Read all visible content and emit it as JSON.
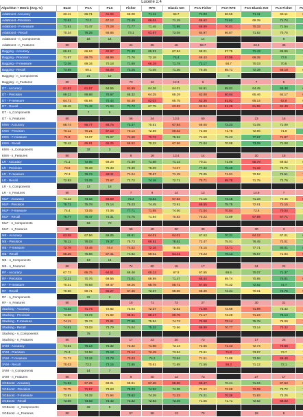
{
  "caption": "Lucene 2.4",
  "columns": [
    "Algorithm + Metric (Avg. %)",
    "Base",
    "PCA",
    "PLS",
    "Fisher",
    "RFE",
    "Elastic Net",
    "PCA-Fisher",
    "PCA-RFE",
    "PCA-Elastic Net",
    "PLS-Fisher",
    "PLS-RFE"
  ],
  "rows": [
    {
      "label": "AdaBoost- Accuracy",
      "values": [
        "66.11",
        "66.71",
        "61.06",
        "66.08",
        "71.11",
        "66.7",
        "71.03",
        "66.55",
        "71.11",
        "66.11",
        "65.47"
      ]
    },
    {
      "label": "AdaBoost -Precision",
      "values": [
        "72.61",
        "72.2",
        "67.12",
        "72.49",
        "66.04",
        "71.15",
        "66.62",
        "72.62",
        "69.39",
        "71.74",
        "72.58"
      ]
    },
    {
      "label": "AdaBoost - F-measure",
      "values": [
        "71.61",
        "71.47",
        "70.28",
        "71.77",
        "71.46",
        "71.95",
        "69.89",
        "70.01",
        "70.33",
        "71.54",
        "71.95"
      ]
    },
    {
      "label": "AdaBoost - Recall",
      "values": [
        "70.34",
        "76.25",
        "66.65",
        "73.1",
        "61.67",
        "73.08",
        "64.97",
        "66.87",
        "71.82",
        "70.75",
        "71.49"
      ]
    },
    {
      "label": "AdaBoost - n_Components",
      "values": [
        "",
        "16",
        "14",
        "",
        "",
        "",
        "14",
        "",
        "",
        "8",
        ""
      ]
    },
    {
      "label": "AdaBoost - n_Features",
      "values": [
        "80",
        "",
        "",
        "24",
        "35",
        "15",
        "58.7",
        "",
        "23.3",
        "36",
        "4"
      ]
    },
    {
      "label": "Bagging - Accuracy",
      "values": [
        "69.61",
        "66.84",
        "62.97",
        "71.39",
        "69.91",
        "67.84",
        "68.01",
        "67.75",
        "71.43",
        "69.65",
        "70.52"
      ]
    },
    {
      "label": "Bagging - Precision",
      "values": [
        "71.87",
        "69.79",
        "68.99",
        "72.76",
        "72.18",
        "74.4",
        "69.43",
        "67.95",
        "69.35",
        "73.5",
        "71.99"
      ]
    },
    {
      "label": "Bagging - F-measure",
      "values": [
        "72.09",
        "69.34",
        "70.18",
        "71.69",
        "66.29",
        "71.79",
        "72.17",
        "68.7",
        "70.03",
        "70.5",
        "71.03"
      ]
    },
    {
      "label": "Bagging - Recall",
      "values": [
        "73.59",
        "69.1",
        "65.09",
        "73.25",
        "71.06",
        "71.36",
        "70.45",
        "68.71",
        "72.39",
        "66.18",
        "69.67"
      ]
    },
    {
      "label": "Bagging - n_Components",
      "values": [
        "",
        "21",
        "12",
        "",
        "",
        "",
        "",
        "9",
        "",
        "",
        "10"
      ]
    },
    {
      "label": "Bagging - n_Features",
      "values": [
        "80",
        "",
        "",
        "73",
        "42",
        "12.3",
        "9",
        "",
        "7",
        "5",
        "14"
      ]
    },
    {
      "label": "DT - Accuracy",
      "values": [
        "61.62",
        "61.57",
        "64.55",
        "61.99",
        "64.26",
        "64.01",
        "64.61",
        "65.01",
        "64.45",
        "65.48",
        "64.89"
      ]
    },
    {
      "label": "DT - Precision",
      "values": [
        "69.22",
        "68.88",
        "70.67",
        "68.32",
        "64.25",
        "65.29",
        "62.08",
        "60.04",
        "65.46",
        "64.17",
        "62.74"
      ]
    },
    {
      "label": "DT - F-measure",
      "values": [
        "64.71",
        "65.94",
        "70.44",
        "64.48",
        "62.03",
        "65.75",
        "62.35",
        "61.92",
        "65.14",
        "62.9",
        "65.71"
      ]
    },
    {
      "label": "DT - Recall",
      "values": [
        "68.48",
        "71.42",
        "71.04",
        "71.72",
        "67.75",
        "63.53",
        "63.04",
        "61.26",
        "61.55",
        "61.49",
        "61.37"
      ]
    },
    {
      "label": "DT - n_Components",
      "values": [
        "",
        "7",
        "5",
        "",
        "",
        "",
        "",
        "",
        "",
        "",
        ""
      ]
    },
    {
      "label": "DT - n_Features",
      "values": [
        "80",
        "",
        "",
        "56",
        "44",
        "13.5",
        "50",
        "",
        "23",
        "16",
        "8"
      ]
    },
    {
      "label": "KNN - Accuracy",
      "values": [
        "68.74",
        "66.77",
        "66.75",
        "73.47",
        "70.51",
        "67.84",
        "69.05",
        "73.23",
        "71.05",
        "71.09",
        "70.78"
      ]
    },
    {
      "label": "KNN - Precision",
      "values": [
        "70.11",
        "70.21",
        "67.14",
        "70.14",
        "72.59",
        "69.02",
        "72.08",
        "71.78",
        "72.96",
        "71.9",
        "77.61"
      ]
    },
    {
      "label": "KNN - F-measure",
      "values": [
        "71.9",
        "74.07",
        "76.07",
        "71.58",
        "70.72",
        "75.92",
        "74.58",
        "75.23",
        "77.67",
        "71.87",
        "72.04"
      ]
    },
    {
      "label": "KNN - Recall",
      "values": [
        "70.42",
        "65.81",
        "65.25",
        "66.52",
        "70.22",
        "67.56",
        "71.04",
        "70.08",
        "73.09",
        "71.08",
        "72.06"
      ]
    },
    {
      "label": "KNN - n_Components",
      "values": [
        "",
        "32",
        "3",
        "",
        "",
        "",
        "",
        "",
        "",
        "",
        ""
      ]
    },
    {
      "label": "KNN - n_Features",
      "values": [
        "80",
        "",
        "",
        "8",
        "18",
        "13.4",
        "14",
        "",
        "20",
        "15",
        "4"
      ]
    },
    {
      "label": "LR - Accuracy",
      "values": [
        "71.1",
        "72.85",
        "69.28",
        "71.39",
        "71.68",
        "71.14",
        "70.11",
        "71.06",
        "65.78",
        "69.62",
        "69.66"
      ]
    },
    {
      "label": "LR - Precision",
      "values": [
        "73.8",
        "76.33",
        "75.33",
        "76.39",
        "76.09",
        "74.07",
        "77.32",
        "78.49",
        "71.32",
        "75.75",
        "73.75"
      ]
    },
    {
      "label": "LR - F-measure",
      "values": [
        "72.3",
        "76.74",
        "68.11",
        "71.04",
        "70.67",
        "71.15",
        "73.05",
        "71.01",
        "72.52",
        "74.51",
        "70.38"
      ]
    },
    {
      "label": "LR - Recall",
      "values": [
        "72.93",
        "74.05",
        "70.67",
        "72.72",
        "74.16",
        "72.71",
        "70.71",
        "69.76",
        "71.75",
        "72.76",
        "71.52"
      ]
    },
    {
      "label": "LR - n_Components",
      "values": [
        "",
        "13",
        "18",
        "",
        "",
        "",
        "",
        "",
        "",
        "",
        ""
      ]
    },
    {
      "label": "LR - n_Features",
      "values": [
        "80",
        "",
        "",
        "7",
        "9",
        "14",
        "13",
        "",
        "14.9",
        "7",
        "7"
      ]
    },
    {
      "label": "MLP - Accuracy",
      "values": [
        "71.13",
        "73.15",
        "66.59",
        "73.4",
        "73.51",
        "67.83",
        "71.15",
        "73.15",
        "71.33",
        "70.45",
        "67.13"
      ]
    },
    {
      "label": "MLP - Precision",
      "values": [
        "76.71",
        "75.78",
        "75.14",
        "75.23",
        "74.45",
        "73.91",
        "69.55",
        "75.75",
        "72.61",
        "71.15",
        "74.41"
      ]
    },
    {
      "label": "MLP - F-measure",
      "values": [
        "74.4",
        "73.05",
        "74.06",
        "77.71",
        "71.65",
        "74.56",
        "71.04",
        "70.84",
        "72.6",
        "70.04",
        "74.31"
      ]
    },
    {
      "label": "MLP - Recall",
      "values": [
        "75.77",
        "75.47",
        "74.31",
        "74.75",
        "71.94",
        "70.83",
        "70.22",
        "72.89",
        "67.89",
        "67.71",
        "73.72"
      ]
    },
    {
      "label": "MLP - n_Components",
      "values": [
        "",
        "53",
        "70",
        "",
        "",
        "",
        "",
        "",
        "",
        "",
        ""
      ]
    },
    {
      "label": "MLP - n_Features",
      "values": [
        "80",
        "",
        "",
        "55",
        "40",
        "30",
        "30",
        "",
        "30",
        "3",
        "4"
      ]
    },
    {
      "label": "NB - Accuracy",
      "values": [
        "63.09",
        "67.56",
        "69.05",
        "69.61",
        "64.01",
        "64.01",
        "67.53",
        "70.31",
        "64.12",
        "67.01",
        "68.65"
      ]
    },
    {
      "label": "NB - Precision",
      "values": [
        "78.11",
        "78.03",
        "79.37",
        "75.73",
        "68.51",
        "78.51",
        "72.47",
        "75.01",
        "76.45",
        "72.01",
        "77.37"
      ]
    },
    {
      "label": "NB - F-measure",
      "values": [
        "72.76",
        "73.45",
        "74.4",
        "74.02",
        "72.16",
        "76.05",
        "75.15",
        "72.71",
        "77.71",
        "80.01",
        "80.75"
      ]
    },
    {
      "label": "NB - Recall",
      "values": [
        "66.25",
        "75.66",
        "67.41",
        "74.92",
        "69.01",
        "64.41",
        "70.23",
        "79.13",
        "75.57",
        "71.04",
        "66.52"
      ]
    },
    {
      "label": "NB - n_Components",
      "values": [
        "",
        "13",
        "14",
        "",
        "",
        "",
        "",
        "",
        "",
        "",
        ""
      ]
    },
    {
      "label": "NB - n_Features",
      "values": [
        "80",
        "",
        "",
        "74",
        "60",
        "16",
        "17",
        "",
        "24",
        "22",
        "19"
      ]
    },
    {
      "label": "RF - Accuracy",
      "values": [
        "67.73",
        "65.75",
        "64.51",
        "69.48",
        "65.13",
        "67.8",
        "67.55",
        "69.5",
        "70.07",
        "71.37",
        "70.13"
      ]
    },
    {
      "label": "RF - Precision",
      "values": [
        "72.21",
        "70.76",
        "69.56",
        "73.01",
        "68.99",
        "71.47",
        "65.44",
        "69.74",
        "70.85",
        "74.01",
        "67.16"
      ]
    },
    {
      "label": "RF - F-measure",
      "values": [
        "70.31",
        "70.93",
        "69.47",
        "69.26",
        "68.78",
        "68.71",
        "67.55",
        "70.32",
        "72.52",
        "72.7",
        "72.01"
      ]
    },
    {
      "label": "RF - Recall",
      "values": [
        "70.66",
        "69.71",
        "65.27",
        "67.46",
        "72.37",
        "68.69",
        "68.36",
        "72.31",
        "70.01",
        "74.75",
        "68.43"
      ]
    },
    {
      "label": "RF - n_Components",
      "values": [
        "",
        "22",
        "2",
        "",
        "",
        "",
        "",
        "",
        "",
        "",
        ""
      ]
    },
    {
      "label": "RF - n_Features",
      "values": [
        "80",
        "",
        "",
        "10",
        "71",
        "73",
        "27",
        "",
        "30",
        "21",
        "21"
      ]
    },
    {
      "label": "Stacking - Accuracy",
      "values": [
        "74.33",
        "71.74",
        "72.92",
        "73.04",
        "72.37",
        "72.61",
        "71.68",
        "72.68",
        "71.99",
        "73.42",
        "72.22"
      ]
    },
    {
      "label": "Stacking - Precision",
      "values": [
        "73.89",
        "74.72",
        "71.92",
        "69.51",
        "69.17",
        "69.75",
        "71.17",
        "72.28",
        "71.24",
        "76.14",
        "73.79"
      ]
    },
    {
      "label": "Stacking - F-measure",
      "values": [
        "74.11",
        "75.74",
        "72.91",
        "77.96",
        "75.84",
        "74.73",
        "72.58",
        "73.14",
        "76.78",
        "75.08",
        "73.72"
      ]
    },
    {
      "label": "Stacking - Recall",
      "values": [
        "74.61",
        "73.03",
        "73.79",
        "74.04",
        "75.22",
        "72.56",
        "69.89",
        "70.77",
        "73.14",
        "70.32",
        "73.39"
      ]
    },
    {
      "label": "Stacking - n_Components",
      "values": [
        "",
        "76",
        "3",
        "",
        "",
        "",
        "",
        "",
        "",
        "",
        ""
      ]
    },
    {
      "label": "Stacking - n_Features",
      "values": [
        "80",
        "",
        "",
        "17",
        "43",
        "30",
        "73",
        "",
        "17",
        "26",
        "4"
      ]
    },
    {
      "label": "SVM - Accuracy",
      "values": [
        "74.61",
        "76.14",
        "75.32",
        "72.32",
        "71.98",
        "73.14",
        "72.65",
        "71.43",
        "72.74",
        "70.58",
        "73.28"
      ]
    },
    {
      "label": "SVM - Precision",
      "values": [
        "74.3",
        "74.58",
        "75.18",
        "72.14",
        "72.49",
        "73.84",
        "73.61",
        "71.8",
        "73.97",
        "73.7",
        "73.51"
      ]
    },
    {
      "label": "SVM - F-measure",
      "values": [
        "71.73",
        "74.34",
        "74.78",
        "70.03",
        "74.2",
        "73.84",
        "71.51",
        "71.88",
        "73.58",
        "69.48",
        "71.41"
      ]
    },
    {
      "label": "SVM - Recall",
      "values": [
        "70.03",
        "72.3",
        "73.15",
        "72.85",
        "70.61",
        "71.58",
        "71.55",
        "68.3",
        "71.12",
        "72.1",
        "71.37"
      ]
    },
    {
      "label": "SVM - n_Components",
      "values": [
        "",
        "14",
        "7",
        "",
        "",
        "",
        "",
        "",
        "",
        "",
        ""
      ]
    },
    {
      "label": "SVM - n_Features",
      "values": [
        "80",
        "",
        "",
        "8",
        "40",
        "13",
        "73",
        "",
        "27",
        "17",
        "16"
      ]
    },
    {
      "label": "XGBoost - Accuracy",
      "values": [
        "71.93",
        "67.25",
        "69.01",
        "68.91",
        "67.26",
        "66.58",
        "66.47",
        "70.41",
        "71.04",
        "67.53",
        "68.29"
      ]
    },
    {
      "label": "XGBoost - Precision",
      "values": [
        "72.75",
        "71.67",
        "73.63",
        "75.03",
        "74.92",
        "74.36",
        "72.92",
        "72.68",
        "72.09",
        "73.72",
        "73.83"
      ]
    },
    {
      "label": "XGBoost - F-measure",
      "values": [
        "73.51",
        "74.32",
        "71.94",
        "75.62",
        "74.26",
        "71.33",
        "74.21",
        "70.35",
        "71.83",
        "73.25",
        "73.58"
      ]
    },
    {
      "label": "XGBoost - Recall",
      "values": [
        "73.08",
        "73.63",
        "73.42",
        "73.32",
        "72.93",
        "73.49",
        "71.65",
        "71.71",
        "72.62",
        "69.03",
        "72.43"
      ]
    },
    {
      "label": "XGBoost - n_Components",
      "values": [
        "",
        "32",
        "5",
        "",
        "",
        "",
        "",
        "",
        "",
        "",
        ""
      ]
    },
    {
      "label": "XGBoost - n_Features",
      "values": [
        "80",
        "",
        "",
        "57",
        "58",
        "13",
        "70",
        "",
        "18",
        "5",
        "4"
      ]
    }
  ],
  "colors": {
    "header_blue": "#4472c4",
    "scale_low": "#f8696b",
    "scale_mid": "#ffeb84",
    "scale_high": "#63be7b",
    "n_features": "#f4a6a6",
    "n_components": "#a9d08e",
    "empty": "#262626"
  }
}
